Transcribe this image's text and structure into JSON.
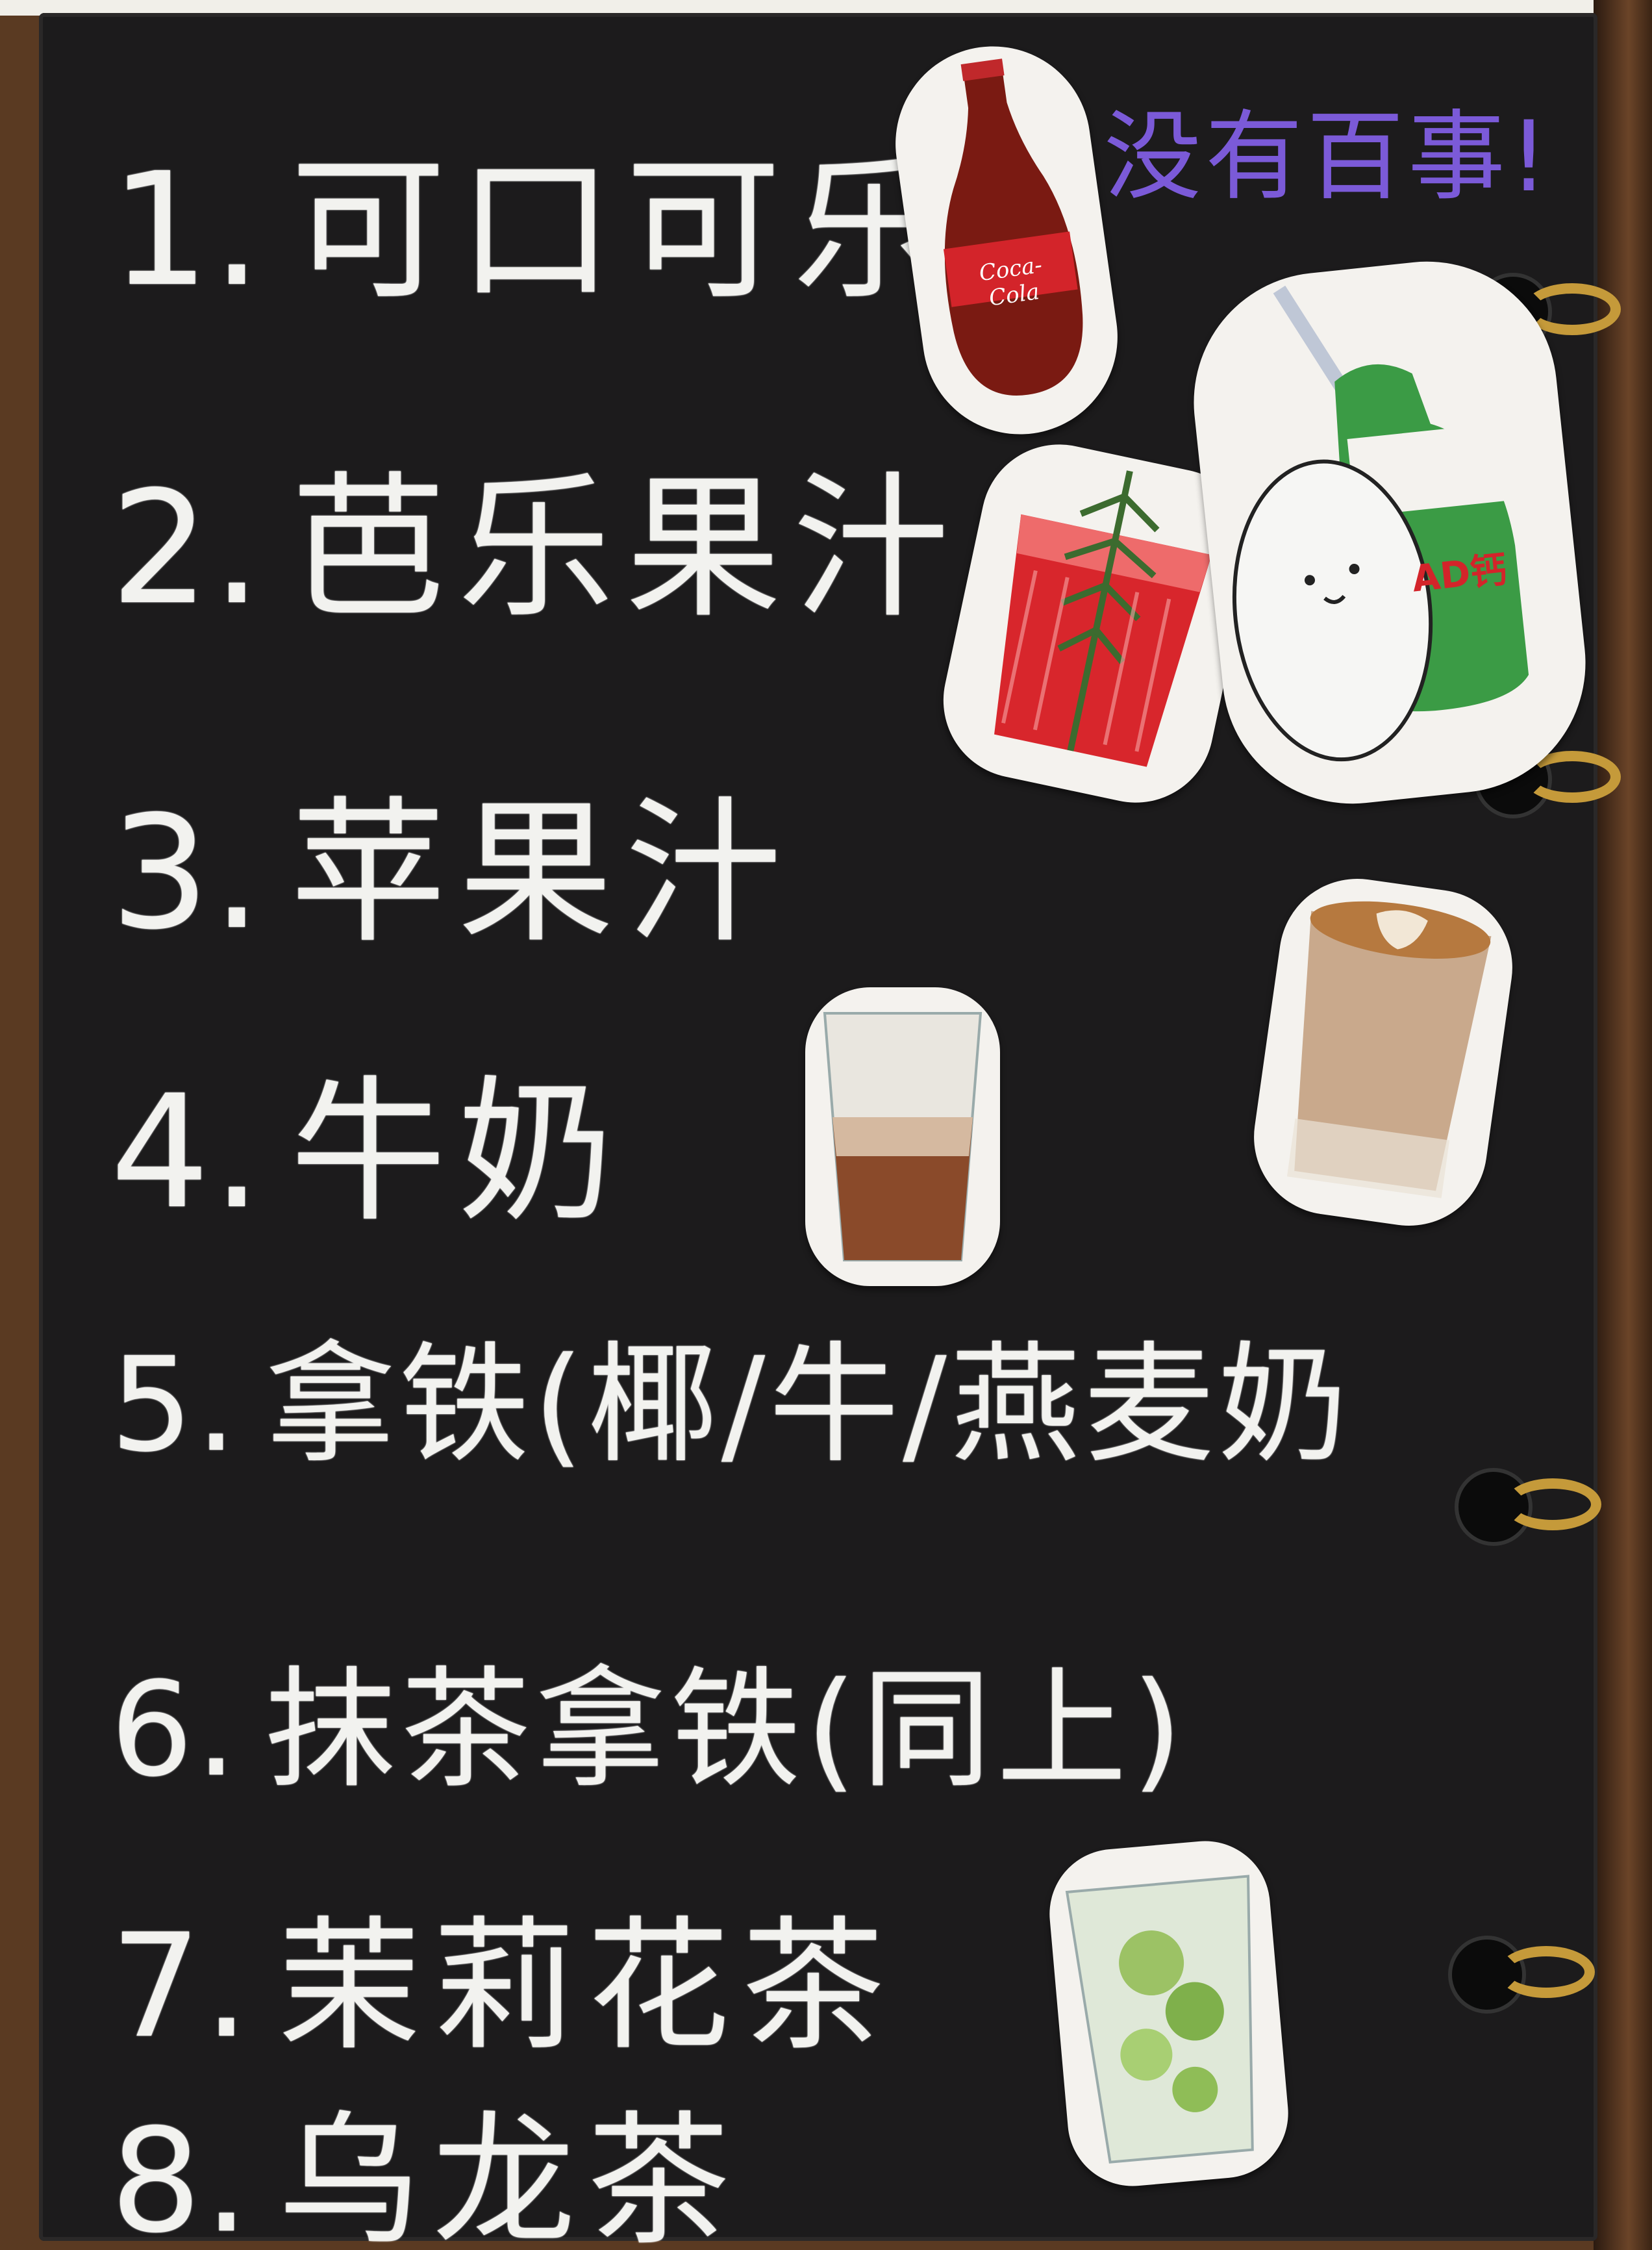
{
  "menu": {
    "items": [
      {
        "num": "1.",
        "name": "可口可乐"
      },
      {
        "num": "2.",
        "name": "芭乐果汁"
      },
      {
        "num": "3.",
        "name": "苹果汁"
      },
      {
        "num": "4.",
        "name": "牛奶"
      },
      {
        "num": "5.",
        "name": "拿铁(椰/牛/燕麦奶"
      },
      {
        "num": "6.",
        "name": "抹茶拿铁(同上)"
      },
      {
        "num": "7.",
        "name": "茉莉花茶"
      },
      {
        "num": "8.",
        "name": "乌龙茶"
      }
    ],
    "note": "没有百事!"
  },
  "stickers": {
    "cola_label": "Coca-Cola",
    "ad_label": "AD钙"
  },
  "colors": {
    "chalkboard": "#1c1b1c",
    "chalk": "#f2f2ef",
    "note": "#7b5ad8",
    "ring": "#c59a3a"
  }
}
